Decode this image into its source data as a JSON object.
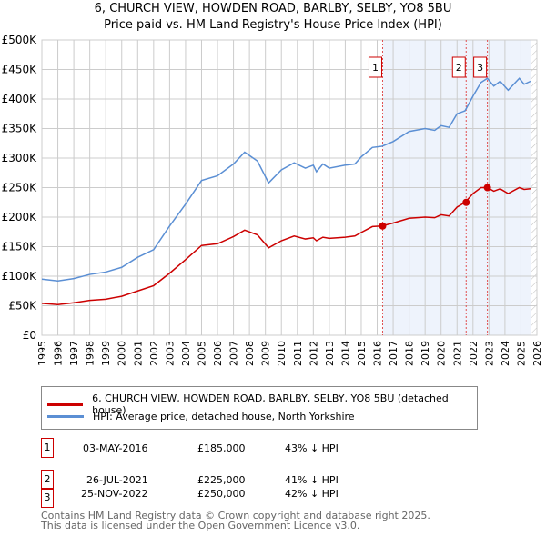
{
  "title": "6, CHURCH VIEW, HOWDEN ROAD, BARLBY, SELBY, YO8 5BU",
  "subtitle": "Price paid vs. HM Land Registry's House Price Index (HPI)",
  "chart_data": {
    "type": "line",
    "title": "6, CHURCH VIEW, HOWDEN ROAD, BARLBY, SELBY, YO8 5BU",
    "subtitle": "Price paid vs. HM Land Registry's House Price Index (HPI)",
    "xlim": [
      1995,
      2026
    ],
    "ylim": [
      0,
      500000
    ],
    "x_ticks": [
      "1995",
      "1996",
      "1997",
      "1998",
      "1999",
      "2000",
      "2001",
      "2002",
      "2003",
      "2004",
      "2005",
      "2006",
      "2007",
      "2008",
      "2009",
      "2010",
      "2011",
      "2012",
      "2013",
      "2014",
      "2015",
      "2016",
      "2017",
      "2018",
      "2019",
      "2020",
      "2021",
      "2022",
      "2023",
      "2024",
      "2025",
      "2026"
    ],
    "y_ticks": [
      {
        "v": 0,
        "label": "£0"
      },
      {
        "v": 50000,
        "label": "£50K"
      },
      {
        "v": 100000,
        "label": "£100K"
      },
      {
        "v": 150000,
        "label": "£150K"
      },
      {
        "v": 200000,
        "label": "£200K"
      },
      {
        "v": 250000,
        "label": "£250K"
      },
      {
        "v": 300000,
        "label": "£300K"
      },
      {
        "v": 350000,
        "label": "£350K"
      },
      {
        "v": 400000,
        "label": "£400K"
      },
      {
        "v": 450000,
        "label": "£450K"
      },
      {
        "v": 500000,
        "label": "£500K"
      }
    ],
    "grid": true,
    "x": [
      1995,
      1996,
      1997,
      1998,
      1999,
      2000,
      2001,
      2002,
      2003,
      2004,
      2005,
      2006,
      2007,
      2007.7,
      2008.5,
      2009.2,
      2010,
      2010.8,
      2011.5,
      2012,
      2012.2,
      2012.6,
      2013,
      2014,
      2014.6,
      2015,
      2015.7,
      2016.3,
      2017,
      2018,
      2019,
      2019.6,
      2020,
      2020.5,
      2021,
      2021.5,
      2022,
      2022.5,
      2022.9,
      2023.3,
      2023.7,
      2024.2,
      2024.9,
      2025.2,
      2025.6
    ],
    "series": [
      {
        "name": "6, CHURCH VIEW, HOWDEN ROAD, BARLBY, SELBY, YO8 5BU (detached house)",
        "color": "#cc0000",
        "values": [
          54000,
          52000,
          55000,
          59000,
          61000,
          66000,
          75000,
          84000,
          105000,
          128000,
          152000,
          155000,
          167000,
          178000,
          170000,
          148000,
          160000,
          168000,
          163000,
          165000,
          160000,
          166000,
          164000,
          166000,
          168000,
          174000,
          184000,
          185000,
          190000,
          198000,
          200000,
          199000,
          204000,
          202000,
          217000,
          225000,
          240000,
          250000,
          250000,
          244000,
          248000,
          240000,
          250000,
          247000,
          248000
        ]
      },
      {
        "name": "HPI: Average price, detached house, North Yorkshire",
        "color": "#5b8fd4",
        "values": [
          95000,
          92000,
          96000,
          103000,
          107000,
          115000,
          132000,
          145000,
          185000,
          222000,
          262000,
          270000,
          290000,
          310000,
          295000,
          258000,
          280000,
          292000,
          283000,
          288000,
          277000,
          290000,
          283000,
          288000,
          290000,
          302000,
          318000,
          320000,
          328000,
          345000,
          350000,
          347000,
          355000,
          352000,
          375000,
          380000,
          405000,
          428000,
          435000,
          422000,
          430000,
          415000,
          435000,
          425000,
          430000
        ]
      }
    ],
    "sales": [
      {
        "id": "1",
        "x": 2016.34,
        "date": "03-MAY-2016",
        "price": 185000,
        "price_label": "£185,000",
        "hpi": "43% ↓ HPI"
      },
      {
        "id": "2",
        "x": 2021.57,
        "date": "26-JUL-2021",
        "price": 225000,
        "price_label": "£225,000",
        "hpi": "41% ↓ HPI"
      },
      {
        "id": "3",
        "x": 2022.9,
        "date": "25-NOV-2022",
        "price": 250000,
        "price_label": "£250,000",
        "hpi": "42% ↓ HPI"
      }
    ],
    "shade_from": 2016.34,
    "data_end": 2025.6,
    "legend_position": "bottom"
  },
  "legend": {
    "property": "6, CHURCH VIEW, HOWDEN ROAD, BARLBY, SELBY, YO8 5BU (detached house)",
    "hpi": "HPI: Average price, detached house, North Yorkshire"
  },
  "footer": {
    "line1": "Contains HM Land Registry data © Crown copyright and database right 2025.",
    "line2": "This data is licensed under the Open Government Licence v3.0."
  }
}
